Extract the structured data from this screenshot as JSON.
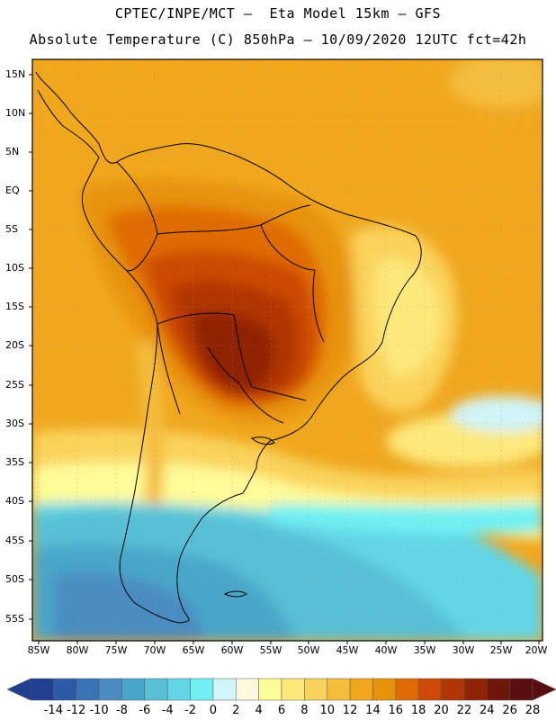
{
  "header": {
    "line1": "CPTEC/INPE/MCT –  Eta Model 15km – GFS",
    "line2": "Absolute Temperature (C) 850hPa – 10/09/2020 12UTC fct=42h"
  },
  "map": {
    "lat_labels": [
      "15N",
      "10N",
      "5N",
      "EQ",
      "5S",
      "10S",
      "15S",
      "20S",
      "25S",
      "30S",
      "35S",
      "40S",
      "45S",
      "50S",
      "55S"
    ],
    "lon_labels": [
      "85W",
      "80W",
      "75W",
      "70W",
      "65W",
      "60W",
      "55W",
      "50W",
      "45W",
      "40W",
      "35W",
      "30W",
      "25W",
      "20W"
    ]
  },
  "colorbar": {
    "colors": [
      "#1f3f8f",
      "#2c5aa6",
      "#3874b5",
      "#4a8cc2",
      "#4aa6c9",
      "#58bfd6",
      "#62d6e6",
      "#71f0f2",
      "#d0f4f7",
      "#fff8e0",
      "#fffc9a",
      "#fde87a",
      "#fad35c",
      "#f5bd3c",
      "#f0a71e",
      "#e8930c",
      "#df6a06",
      "#cc4a04",
      "#b03504",
      "#8f2404",
      "#6e1708",
      "#5a0e12"
    ],
    "labels": [
      "-14",
      "-12",
      "-10",
      "-8",
      "-6",
      "-4",
      "-2",
      "0",
      "2",
      "4",
      "6",
      "8",
      "10",
      "12",
      "14",
      "16",
      "18",
      "20",
      "22",
      "24",
      "26",
      "28"
    ]
  }
}
